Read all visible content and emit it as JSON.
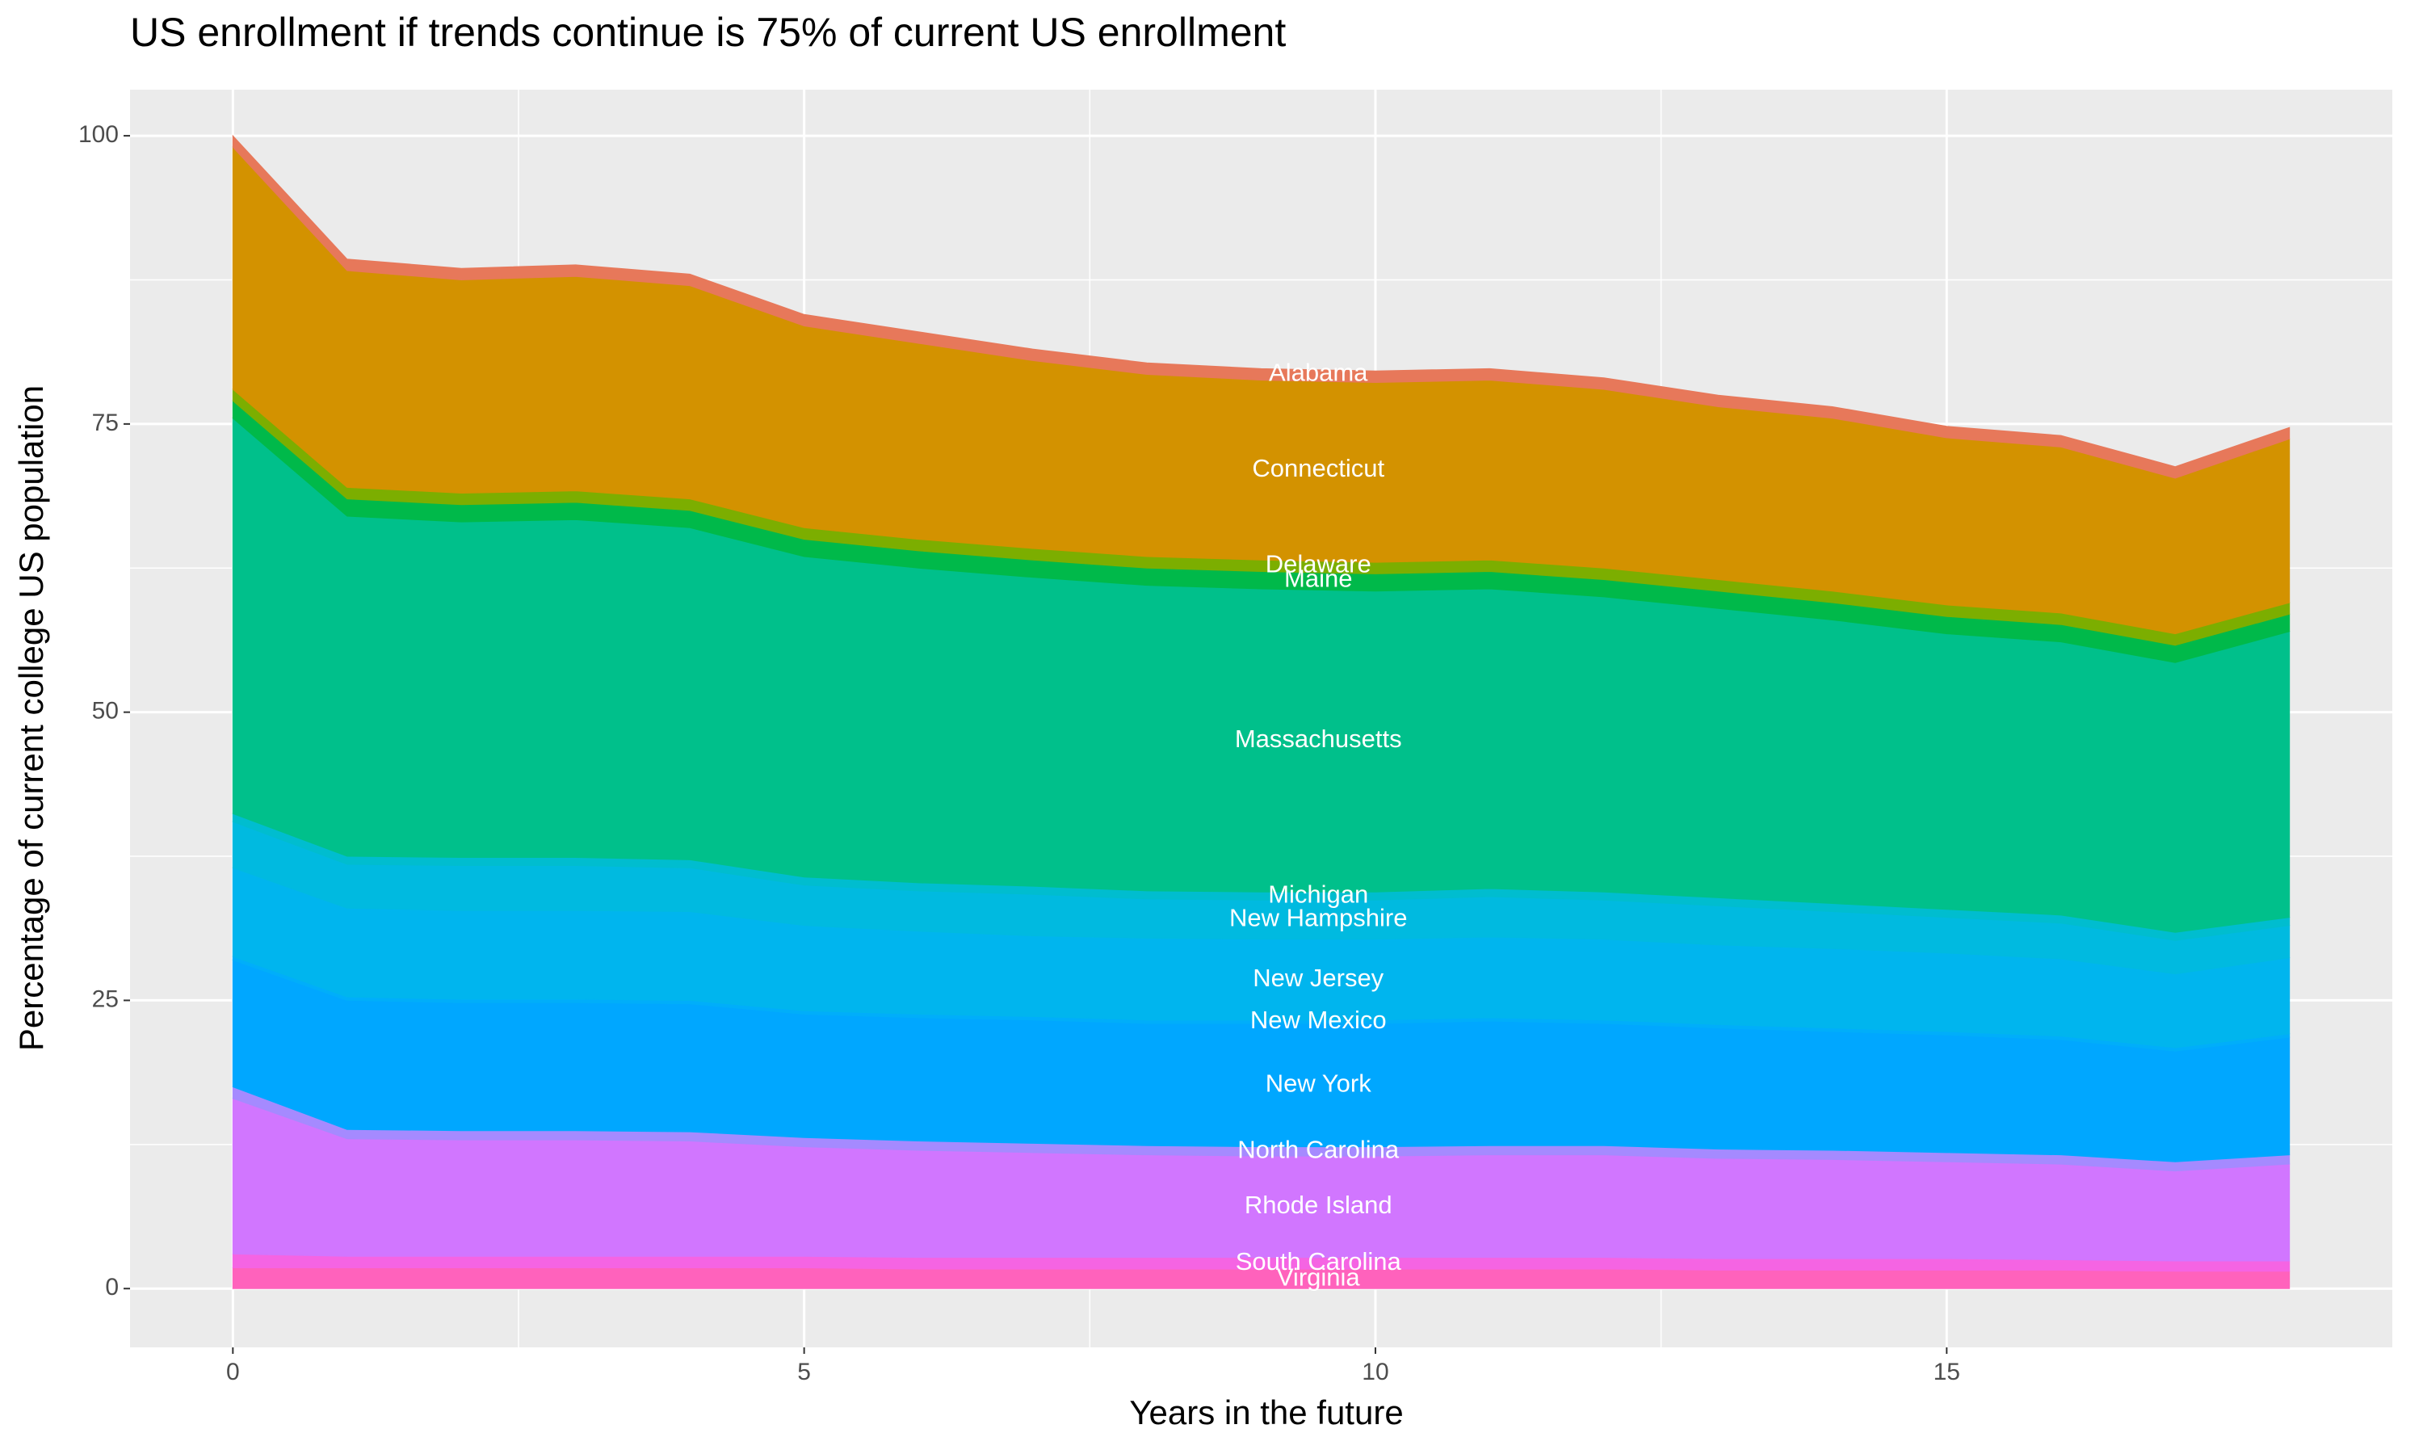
{
  "chart_data": {
    "type": "stacked_area",
    "title": "US enrollment if trends continue is 75% of current US enrollment",
    "x_label": "Years in the future",
    "y_label": "Percentage of current college US population",
    "x": [
      0,
      1,
      2,
      3,
      4,
      5,
      6,
      7,
      8,
      9,
      10,
      11,
      12,
      13,
      14,
      15,
      16,
      17,
      18
    ],
    "xlim": [
      -0.9,
      18.9
    ],
    "xticks": [
      0,
      5,
      10,
      15
    ],
    "ylim": [
      -5.1,
      104
    ],
    "yticks": [
      0,
      25,
      50,
      75,
      100
    ],
    "grid": true,
    "series": [
      {
        "name": "Virginia",
        "color": "#ff62bc",
        "values": [
          1.8,
          1.8,
          1.8,
          1.8,
          1.8,
          1.8,
          1.7,
          1.7,
          1.7,
          1.7,
          1.7,
          1.7,
          1.7,
          1.6,
          1.6,
          1.6,
          1.6,
          1.5,
          1.5
        ]
      },
      {
        "name": "South Carolina",
        "color": "#f564e3",
        "values": [
          1.2,
          1.0,
          1.0,
          1.0,
          1.0,
          1.0,
          1.0,
          1.0,
          1.0,
          1.0,
          1.0,
          1.0,
          1.0,
          1.0,
          1.0,
          1.0,
          0.9,
          0.9,
          0.9
        ]
      },
      {
        "name": "Rhode Island",
        "color": "#d176ff",
        "values": [
          13.5,
          10.2,
          10.1,
          10.1,
          10.0,
          9.5,
          9.3,
          9.1,
          8.9,
          8.8,
          8.8,
          8.9,
          8.9,
          8.7,
          8.6,
          8.4,
          8.3,
          7.8,
          8.4
        ]
      },
      {
        "name": "North Carolina",
        "color": "#a58aff",
        "values": [
          1.0,
          0.8,
          0.8,
          0.8,
          0.8,
          0.8,
          0.8,
          0.8,
          0.8,
          0.8,
          0.8,
          0.8,
          0.8,
          0.8,
          0.8,
          0.8,
          0.8,
          0.8,
          0.8
        ]
      },
      {
        "name": "New York",
        "color": "#00a7ff",
        "values": [
          11,
          11.2,
          11.1,
          11.1,
          11.1,
          10.7,
          10.7,
          10.7,
          10.6,
          10.7,
          10.7,
          10.8,
          10.6,
          10.5,
          10.3,
          10.2,
          10,
          9.6,
          10.2
        ]
      },
      {
        "name": "New Mexico",
        "color": "#00aefa",
        "values": [
          0.3,
          0.3,
          0.3,
          0.3,
          0.3,
          0.3,
          0.3,
          0.3,
          0.3,
          0.3,
          0.3,
          0.3,
          0.3,
          0.3,
          0.3,
          0.3,
          0.3,
          0.3,
          0.3
        ]
      },
      {
        "name": "New Jersey",
        "color": "#00b5ee",
        "values": [
          7.7,
          7.7,
          7.7,
          7.7,
          7.7,
          7.4,
          7.2,
          7.0,
          7.1,
          7.0,
          7.0,
          7.0,
          7.0,
          6.9,
          6.9,
          6.8,
          6.7,
          6.4,
          6.6
        ]
      },
      {
        "name": "New Hampshire",
        "color": "#00bae0",
        "values": [
          4,
          3.8,
          3.9,
          3.9,
          3.8,
          3.5,
          3.5,
          3.6,
          3.4,
          3.4,
          3.4,
          3.5,
          3.4,
          3.4,
          3.2,
          3.1,
          3.1,
          2.9,
          2.8
        ]
      },
      {
        "name": "Michigan",
        "color": "#00bdcf",
        "values": [
          0.7,
          0.7,
          0.7,
          0.7,
          0.7,
          0.7,
          0.7,
          0.7,
          0.7,
          0.7,
          0.7,
          0.7,
          0.7,
          0.7,
          0.7,
          0.7,
          0.7,
          0.7,
          0.7
        ]
      },
      {
        "name": "Massachusetts",
        "color": "#00c08b",
        "values": [
          34.3,
          29.5,
          29.1,
          29.3,
          28.8,
          27.8,
          27.3,
          26.8,
          26.5,
          26.3,
          26.1,
          26,
          25.6,
          25.1,
          24.6,
          23.9,
          23.7,
          23.4,
          24.8
        ]
      },
      {
        "name": "Maine",
        "color": "#00b94a",
        "values": [
          1.5,
          1.5,
          1.5,
          1.5,
          1.5,
          1.5,
          1.5,
          1.5,
          1.5,
          1.5,
          1.5,
          1.5,
          1.5,
          1.5,
          1.5,
          1.5,
          1.5,
          1.5,
          1.5
        ]
      },
      {
        "name": "Delaware",
        "color": "#7cae00",
        "values": [
          1,
          1,
          1,
          1,
          1,
          1,
          1,
          1,
          1,
          1,
          1,
          1,
          1,
          1,
          1,
          1,
          1,
          1,
          1
        ]
      },
      {
        "name": "Connecticut",
        "color": "#d39200",
        "values": [
          21,
          18.8,
          18.5,
          18.6,
          18.5,
          17.5,
          17,
          16.3,
          15.8,
          15.6,
          15.6,
          15.6,
          15.5,
          15,
          15,
          14.5,
          14.4,
          13.5,
          14.2
        ]
      },
      {
        "name": "Alabama",
        "color": "#e7785a",
        "values": [
          1,
          1,
          1,
          1,
          1,
          1,
          1,
          1,
          1,
          1,
          1,
          1,
          1,
          1,
          1,
          1,
          1,
          1,
          1
        ]
      }
    ]
  }
}
